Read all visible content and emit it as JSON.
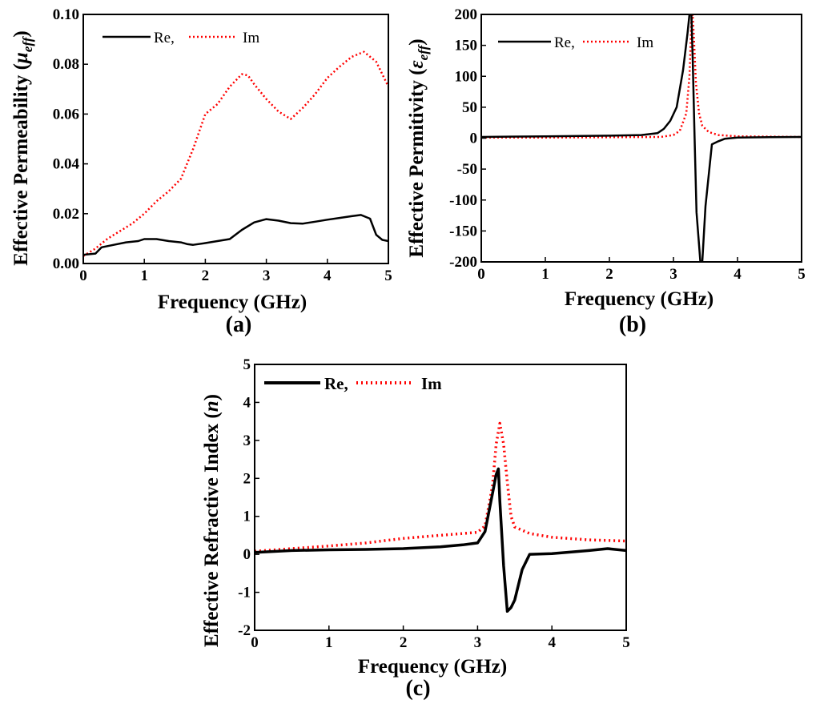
{
  "chart_data": [
    {
      "type": "line",
      "panel_label": "(a)",
      "xlabel": "Frequency (GHz)",
      "ylabel_main": "Effective Permeability (",
      "ylabel_symbol": "μ",
      "ylabel_sub": "eff",
      "ylabel_end": ")",
      "xlim": [
        0,
        5
      ],
      "ylim": [
        0,
        0.1
      ],
      "xticks": [
        0,
        1,
        2,
        3,
        4,
        5
      ],
      "xtick_labels": [
        "0",
        "1",
        "2",
        "3",
        "4",
        "5"
      ],
      "yticks": [
        0,
        0.02,
        0.04,
        0.06,
        0.08,
        0.1
      ],
      "ytick_labels": [
        "0.00",
        "0.02",
        "0.04",
        "0.06",
        "0.08",
        "0.10"
      ],
      "legend": {
        "placement": "top-left",
        "items": [
          "Re,",
          "Im"
        ]
      },
      "series": [
        {
          "name": "Re",
          "color": "#000000",
          "style": "solid",
          "x": [
            0,
            0.2,
            0.3,
            0.5,
            0.7,
            0.9,
            1.0,
            1.2,
            1.4,
            1.6,
            1.7,
            1.8,
            2.0,
            2.2,
            2.4,
            2.6,
            2.8,
            3.0,
            3.2,
            3.4,
            3.6,
            3.8,
            4.0,
            4.2,
            4.4,
            4.55,
            4.7,
            4.8,
            4.9,
            5.0
          ],
          "values": [
            0.0035,
            0.004,
            0.0065,
            0.0075,
            0.0085,
            0.009,
            0.0098,
            0.0098,
            0.009,
            0.0085,
            0.0078,
            0.0075,
            0.0082,
            0.009,
            0.0098,
            0.0135,
            0.0165,
            0.0178,
            0.0172,
            0.0162,
            0.016,
            0.0168,
            0.0176,
            0.0183,
            0.019,
            0.0195,
            0.018,
            0.0115,
            0.0095,
            0.009
          ]
        },
        {
          "name": "Im",
          "color": "#ff0000",
          "style": "dotted",
          "x": [
            0,
            0.2,
            0.4,
            0.6,
            0.8,
            1.0,
            1.2,
            1.4,
            1.6,
            1.8,
            2.0,
            2.2,
            2.4,
            2.6,
            2.7,
            2.8,
            3.0,
            3.2,
            3.4,
            3.6,
            3.8,
            4.0,
            4.2,
            4.4,
            4.6,
            4.8,
            5.0
          ],
          "values": [
            0.003,
            0.006,
            0.01,
            0.013,
            0.016,
            0.02,
            0.025,
            0.029,
            0.034,
            0.046,
            0.06,
            0.064,
            0.071,
            0.076,
            0.0755,
            0.072,
            0.066,
            0.061,
            0.058,
            0.0625,
            0.068,
            0.0745,
            0.079,
            0.083,
            0.085,
            0.081,
            0.071
          ]
        }
      ]
    },
    {
      "type": "line",
      "panel_label": "(b)",
      "xlabel": "Frequency (GHz)",
      "ylabel_main": "Effective Permitivity (",
      "ylabel_symbol": "ε",
      "ylabel_sub": "eff",
      "ylabel_end": ")",
      "xlim": [
        0,
        5
      ],
      "ylim": [
        -200,
        200
      ],
      "xticks": [
        0,
        1,
        2,
        3,
        4,
        5
      ],
      "xtick_labels": [
        "0",
        "1",
        "2",
        "3",
        "4",
        "5"
      ],
      "yticks": [
        -200,
        -150,
        -100,
        -50,
        0,
        50,
        100,
        150,
        200
      ],
      "ytick_labels": [
        "-200",
        "-150",
        "-100",
        "-50",
        "0",
        "50",
        "100",
        "150",
        "200"
      ],
      "legend": {
        "placement": "top-left",
        "items": [
          "Re,",
          "Im"
        ]
      },
      "series": [
        {
          "name": "Re",
          "color": "#000000",
          "style": "solid",
          "x": [
            0,
            1.0,
            2.0,
            2.5,
            2.75,
            2.85,
            2.95,
            3.05,
            3.15,
            3.22,
            3.25,
            3.28,
            3.3,
            3.33,
            3.36,
            3.42,
            3.45,
            3.5,
            3.6,
            3.7,
            3.8,
            4.0,
            4.5,
            5.0
          ],
          "values": [
            2,
            3,
            4,
            5,
            8,
            15,
            28,
            50,
            110,
            170,
            200,
            200,
            130,
            0,
            -120,
            -200,
            -200,
            -110,
            -10,
            -5,
            -1,
            1,
            1.5,
            2
          ]
        },
        {
          "name": "Im",
          "color": "#ff0000",
          "style": "dotted",
          "x": [
            0,
            1.0,
            2.0,
            2.8,
            3.0,
            3.1,
            3.2,
            3.25,
            3.28,
            3.3,
            3.32,
            3.35,
            3.4,
            3.45,
            3.55,
            3.7,
            4.0,
            5.0
          ],
          "values": [
            1,
            1,
            1.5,
            2,
            5,
            12,
            40,
            100,
            190,
            200,
            160,
            90,
            40,
            20,
            10,
            5,
            3,
            2
          ]
        }
      ]
    },
    {
      "type": "line",
      "panel_label": "(c)",
      "xlabel": "Frequency (GHz)",
      "ylabel_main": "Effective Refractive Index (",
      "ylabel_symbol": "n",
      "ylabel_sub": "",
      "ylabel_end": ")",
      "xlim": [
        0,
        5
      ],
      "ylim": [
        -2,
        5
      ],
      "xticks": [
        0,
        1,
        2,
        3,
        4,
        5
      ],
      "xtick_labels": [
        "0",
        "1",
        "2",
        "3",
        "4",
        "5"
      ],
      "yticks": [
        -2,
        -1,
        0,
        1,
        2,
        3,
        4,
        5
      ],
      "ytick_labels": [
        "-2",
        "-1",
        "0",
        "1",
        "2",
        "3",
        "4",
        "5"
      ],
      "legend": {
        "placement": "top-left",
        "items": [
          "Re,",
          "Im"
        ]
      },
      "series": [
        {
          "name": "Re",
          "color": "#000000",
          "style": "solid",
          "x": [
            0,
            0.5,
            1.0,
            1.5,
            2.0,
            2.5,
            2.8,
            3.0,
            3.1,
            3.2,
            3.25,
            3.28,
            3.3,
            3.35,
            3.4,
            3.45,
            3.5,
            3.6,
            3.7,
            4.0,
            4.5,
            4.75,
            5.0
          ],
          "values": [
            0.05,
            0.1,
            0.12,
            0.13,
            0.15,
            0.2,
            0.25,
            0.3,
            0.6,
            1.6,
            2.1,
            2.25,
            1.4,
            -0.3,
            -1.5,
            -1.4,
            -1.2,
            -0.4,
            0.0,
            0.02,
            0.1,
            0.15,
            0.1
          ]
        },
        {
          "name": "Im",
          "color": "#ff0000",
          "style": "dotted",
          "x": [
            0,
            0.5,
            1.0,
            1.5,
            2.0,
            2.5,
            3.0,
            3.1,
            3.2,
            3.25,
            3.3,
            3.35,
            3.4,
            3.45,
            3.5,
            3.7,
            4.0,
            4.5,
            5.0
          ],
          "values": [
            0.08,
            0.15,
            0.22,
            0.3,
            0.42,
            0.5,
            0.58,
            0.75,
            1.8,
            2.9,
            3.45,
            2.9,
            1.9,
            1.0,
            0.72,
            0.55,
            0.45,
            0.38,
            0.35
          ]
        }
      ]
    }
  ]
}
